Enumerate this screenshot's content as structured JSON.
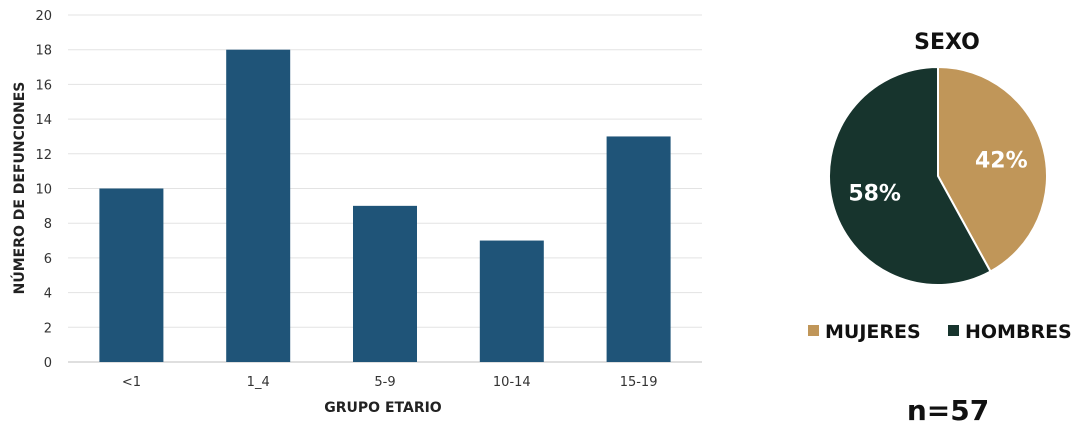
{
  "chart_data": [
    {
      "type": "bar",
      "categories": [
        "<1",
        "1_4",
        "5-9",
        "10-14",
        "15-19"
      ],
      "values": [
        10,
        18,
        9,
        7,
        13
      ],
      "title": "",
      "xlabel": "GRUPO ETARIO",
      "ylabel": "NÚMERO DE DEFUNCIONES",
      "ylim": [
        0,
        20
      ],
      "yticks": [
        0,
        2,
        4,
        6,
        8,
        10,
        12,
        14,
        16,
        18,
        20
      ],
      "grid": true,
      "color": "#1f5478"
    },
    {
      "type": "pie",
      "title": "SEXO",
      "slices": [
        {
          "name": "MUJERES",
          "value": 42,
          "label": "42%",
          "color": "#c09659"
        },
        {
          "name": "HOMBRES",
          "value": 58,
          "label": "58%",
          "color": "#17342d"
        }
      ],
      "legend": "bottom",
      "note": "n=57"
    }
  ]
}
